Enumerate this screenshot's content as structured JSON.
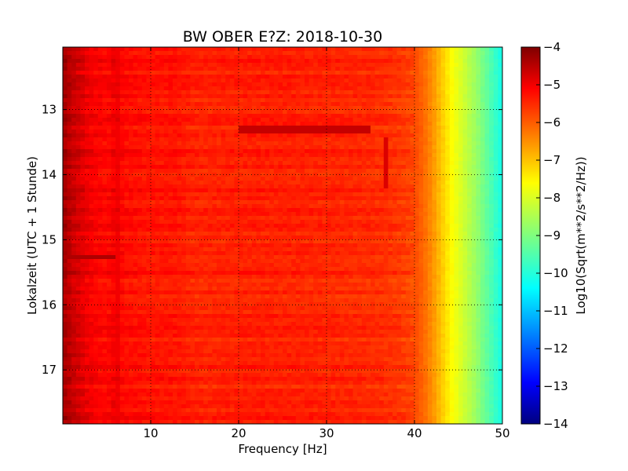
{
  "chart_data": {
    "type": "heatmap",
    "title": "BW OBER E?Z: 2018-10-30",
    "xlabel": "Frequency [Hz]",
    "ylabel": "Lokalzeit (UTC + 1 Stunde)",
    "xlim": [
      0,
      50
    ],
    "ylim": [
      12.04,
      17.83
    ],
    "y_inverted": true,
    "xticks": [
      10,
      20,
      30,
      40,
      50
    ],
    "xtick_labels": [
      "10",
      "20",
      "30",
      "40",
      "50"
    ],
    "yticks": [
      13,
      14,
      15,
      16,
      17
    ],
    "ytick_labels": [
      "13",
      "14",
      "15",
      "16",
      "17"
    ],
    "grid": true,
    "colormap": "jet",
    "colorbar": {
      "label": "Log10(Sqrt(m**2/s**2/Hz))",
      "range": [
        -14,
        -4
      ],
      "ticks": [
        -4,
        -5,
        -6,
        -7,
        -8,
        -9,
        -10,
        -11,
        -12,
        -13,
        -14
      ],
      "tick_labels": [
        "−4",
        "−5",
        "−6",
        "−7",
        "−8",
        "−9",
        "−10",
        "−11",
        "−12",
        "−13",
        "−14"
      ]
    },
    "mean_spectrum": {
      "frequency": [
        0,
        1,
        2,
        3,
        5,
        6,
        7,
        10,
        13,
        15,
        20,
        25,
        30,
        35,
        38,
        40,
        41,
        42,
        43,
        44,
        45,
        46,
        47,
        48,
        49,
        50
      ],
      "value": [
        -4.3,
        -4.6,
        -4.8,
        -5.0,
        -5.2,
        -5.0,
        -5.2,
        -5.3,
        -5.3,
        -5.45,
        -5.4,
        -5.4,
        -5.45,
        -5.5,
        -5.6,
        -5.8,
        -6.1,
        -6.5,
        -7.0,
        -7.5,
        -7.9,
        -8.3,
        -8.7,
        -9.2,
        -9.7,
        -10.2
      ]
    },
    "features": [
      {
        "kind": "band",
        "time": [
          13.22,
          13.38
        ],
        "frequency": [
          20,
          35
        ],
        "value": -4.6
      },
      {
        "kind": "band",
        "time": [
          15.25,
          15.32
        ],
        "frequency": [
          0,
          6
        ],
        "value": -4.4
      },
      {
        "kind": "line",
        "frequency": 6.3,
        "time": [
          12.04,
          17.83
        ],
        "value": -5.0
      },
      {
        "kind": "line",
        "frequency": 36.7,
        "time": [
          13.4,
          14.2
        ],
        "value": -4.8
      }
    ]
  },
  "colors": {
    "jet": [
      "#00007f",
      "#0000ff",
      "#007fff",
      "#00ffff",
      "#7fff7f",
      "#ffff00",
      "#ff7f00",
      "#ff0000",
      "#7f0000"
    ]
  }
}
